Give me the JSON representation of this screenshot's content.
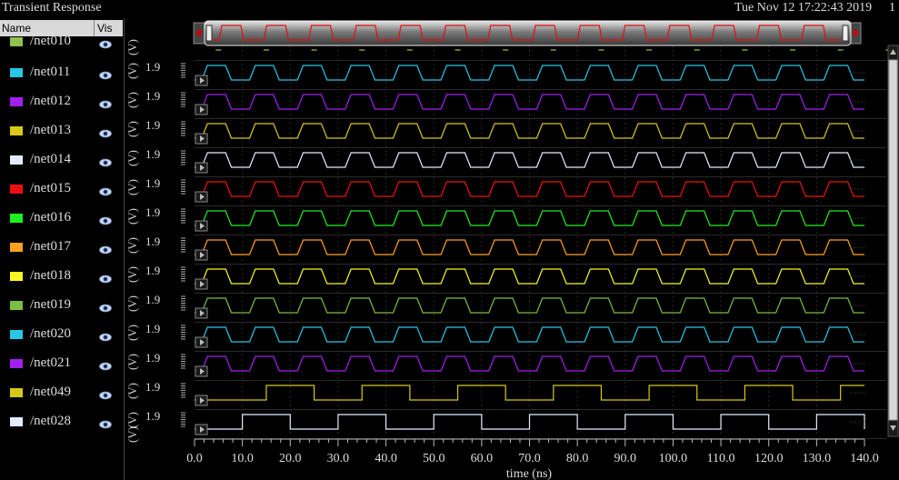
{
  "window": {
    "title": "Transient Response",
    "timestamp": "Tue Nov 12 17:22:43 2019",
    "subplot_index": "1"
  },
  "signal_list": {
    "col_name": "Name",
    "col_vis": "Vis",
    "partial_top_label": "/net010",
    "partial_top_color": "#90c050",
    "items": [
      {
        "label": "/net011",
        "color": "#26c8e6"
      },
      {
        "label": "/net012",
        "color": "#a020f0"
      },
      {
        "label": "/net013",
        "color": "#d8c818"
      },
      {
        "label": "/net014",
        "color": "#e6ecff"
      },
      {
        "label": "/net015",
        "color": "#ee1010"
      },
      {
        "label": "/net016",
        "color": "#1ef01e"
      },
      {
        "label": "/net017",
        "color": "#ffa020"
      },
      {
        "label": "/net018",
        "color": "#f8f820"
      },
      {
        "label": "/net019",
        "color": "#78c040"
      },
      {
        "label": "/net020",
        "color": "#26c8e6"
      },
      {
        "label": "/net021",
        "color": "#a020f0"
      },
      {
        "label": "/net049",
        "color": "#d8c818"
      },
      {
        "label": "/net028",
        "color": "#e6ecff"
      }
    ]
  },
  "chart_data": {
    "type": "line",
    "xlabel": "time (ns)",
    "xlim": [
      0,
      140
    ],
    "x_ticks": [
      "0.0",
      "10.0",
      "20.0",
      "30.0",
      "40.0",
      "50.0",
      "60.0",
      "70.0",
      "80.0",
      "90.0",
      "100.0",
      "110.0",
      "120.0",
      "130.0",
      "140.0"
    ],
    "y_unit_label": "(V)",
    "y_tick_label": "1.9",
    "clock_period_ns": 10,
    "series": [
      {
        "name": "/net011",
        "color": "#26c8e6",
        "waveform": "clock",
        "period_ns": 10
      },
      {
        "name": "/net012",
        "color": "#a020f0",
        "waveform": "clock",
        "period_ns": 10
      },
      {
        "name": "/net013",
        "color": "#d8c818",
        "waveform": "clock",
        "period_ns": 10
      },
      {
        "name": "/net014",
        "color": "#e6ecff",
        "waveform": "clock",
        "period_ns": 10
      },
      {
        "name": "/net015",
        "color": "#ee1010",
        "waveform": "clock",
        "period_ns": 10
      },
      {
        "name": "/net016",
        "color": "#1ef01e",
        "waveform": "clock",
        "period_ns": 10
      },
      {
        "name": "/net017",
        "color": "#ffa020",
        "waveform": "clock",
        "period_ns": 10
      },
      {
        "name": "/net018",
        "color": "#f8f820",
        "waveform": "clock",
        "period_ns": 10
      },
      {
        "name": "/net019",
        "color": "#78c040",
        "waveform": "clock",
        "period_ns": 10
      },
      {
        "name": "/net020",
        "color": "#26c8e6",
        "waveform": "clock",
        "period_ns": 10
      },
      {
        "name": "/net021",
        "color": "#a020f0",
        "waveform": "clock",
        "period_ns": 10
      },
      {
        "name": "/net049",
        "color": "#d8c818",
        "waveform": "square",
        "period_ns": 20,
        "first_high_ns": 15
      },
      {
        "name": "/net028",
        "color": "#e6ecff",
        "waveform": "square",
        "period_ns": 20,
        "first_high_ns": 10
      }
    ]
  }
}
